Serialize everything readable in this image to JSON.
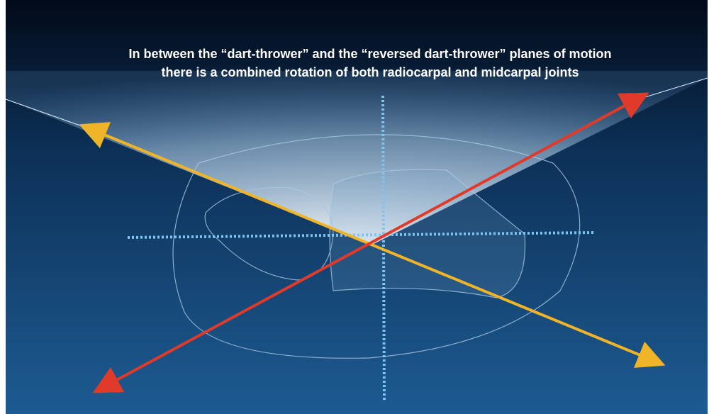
{
  "slide": {
    "title_lines": [
      "In between the “dart-thrower” and the “reversed dart-thrower” planes of motion",
      "there is a combined rotation of both radiocarpal and midcarpal joints"
    ]
  }
}
